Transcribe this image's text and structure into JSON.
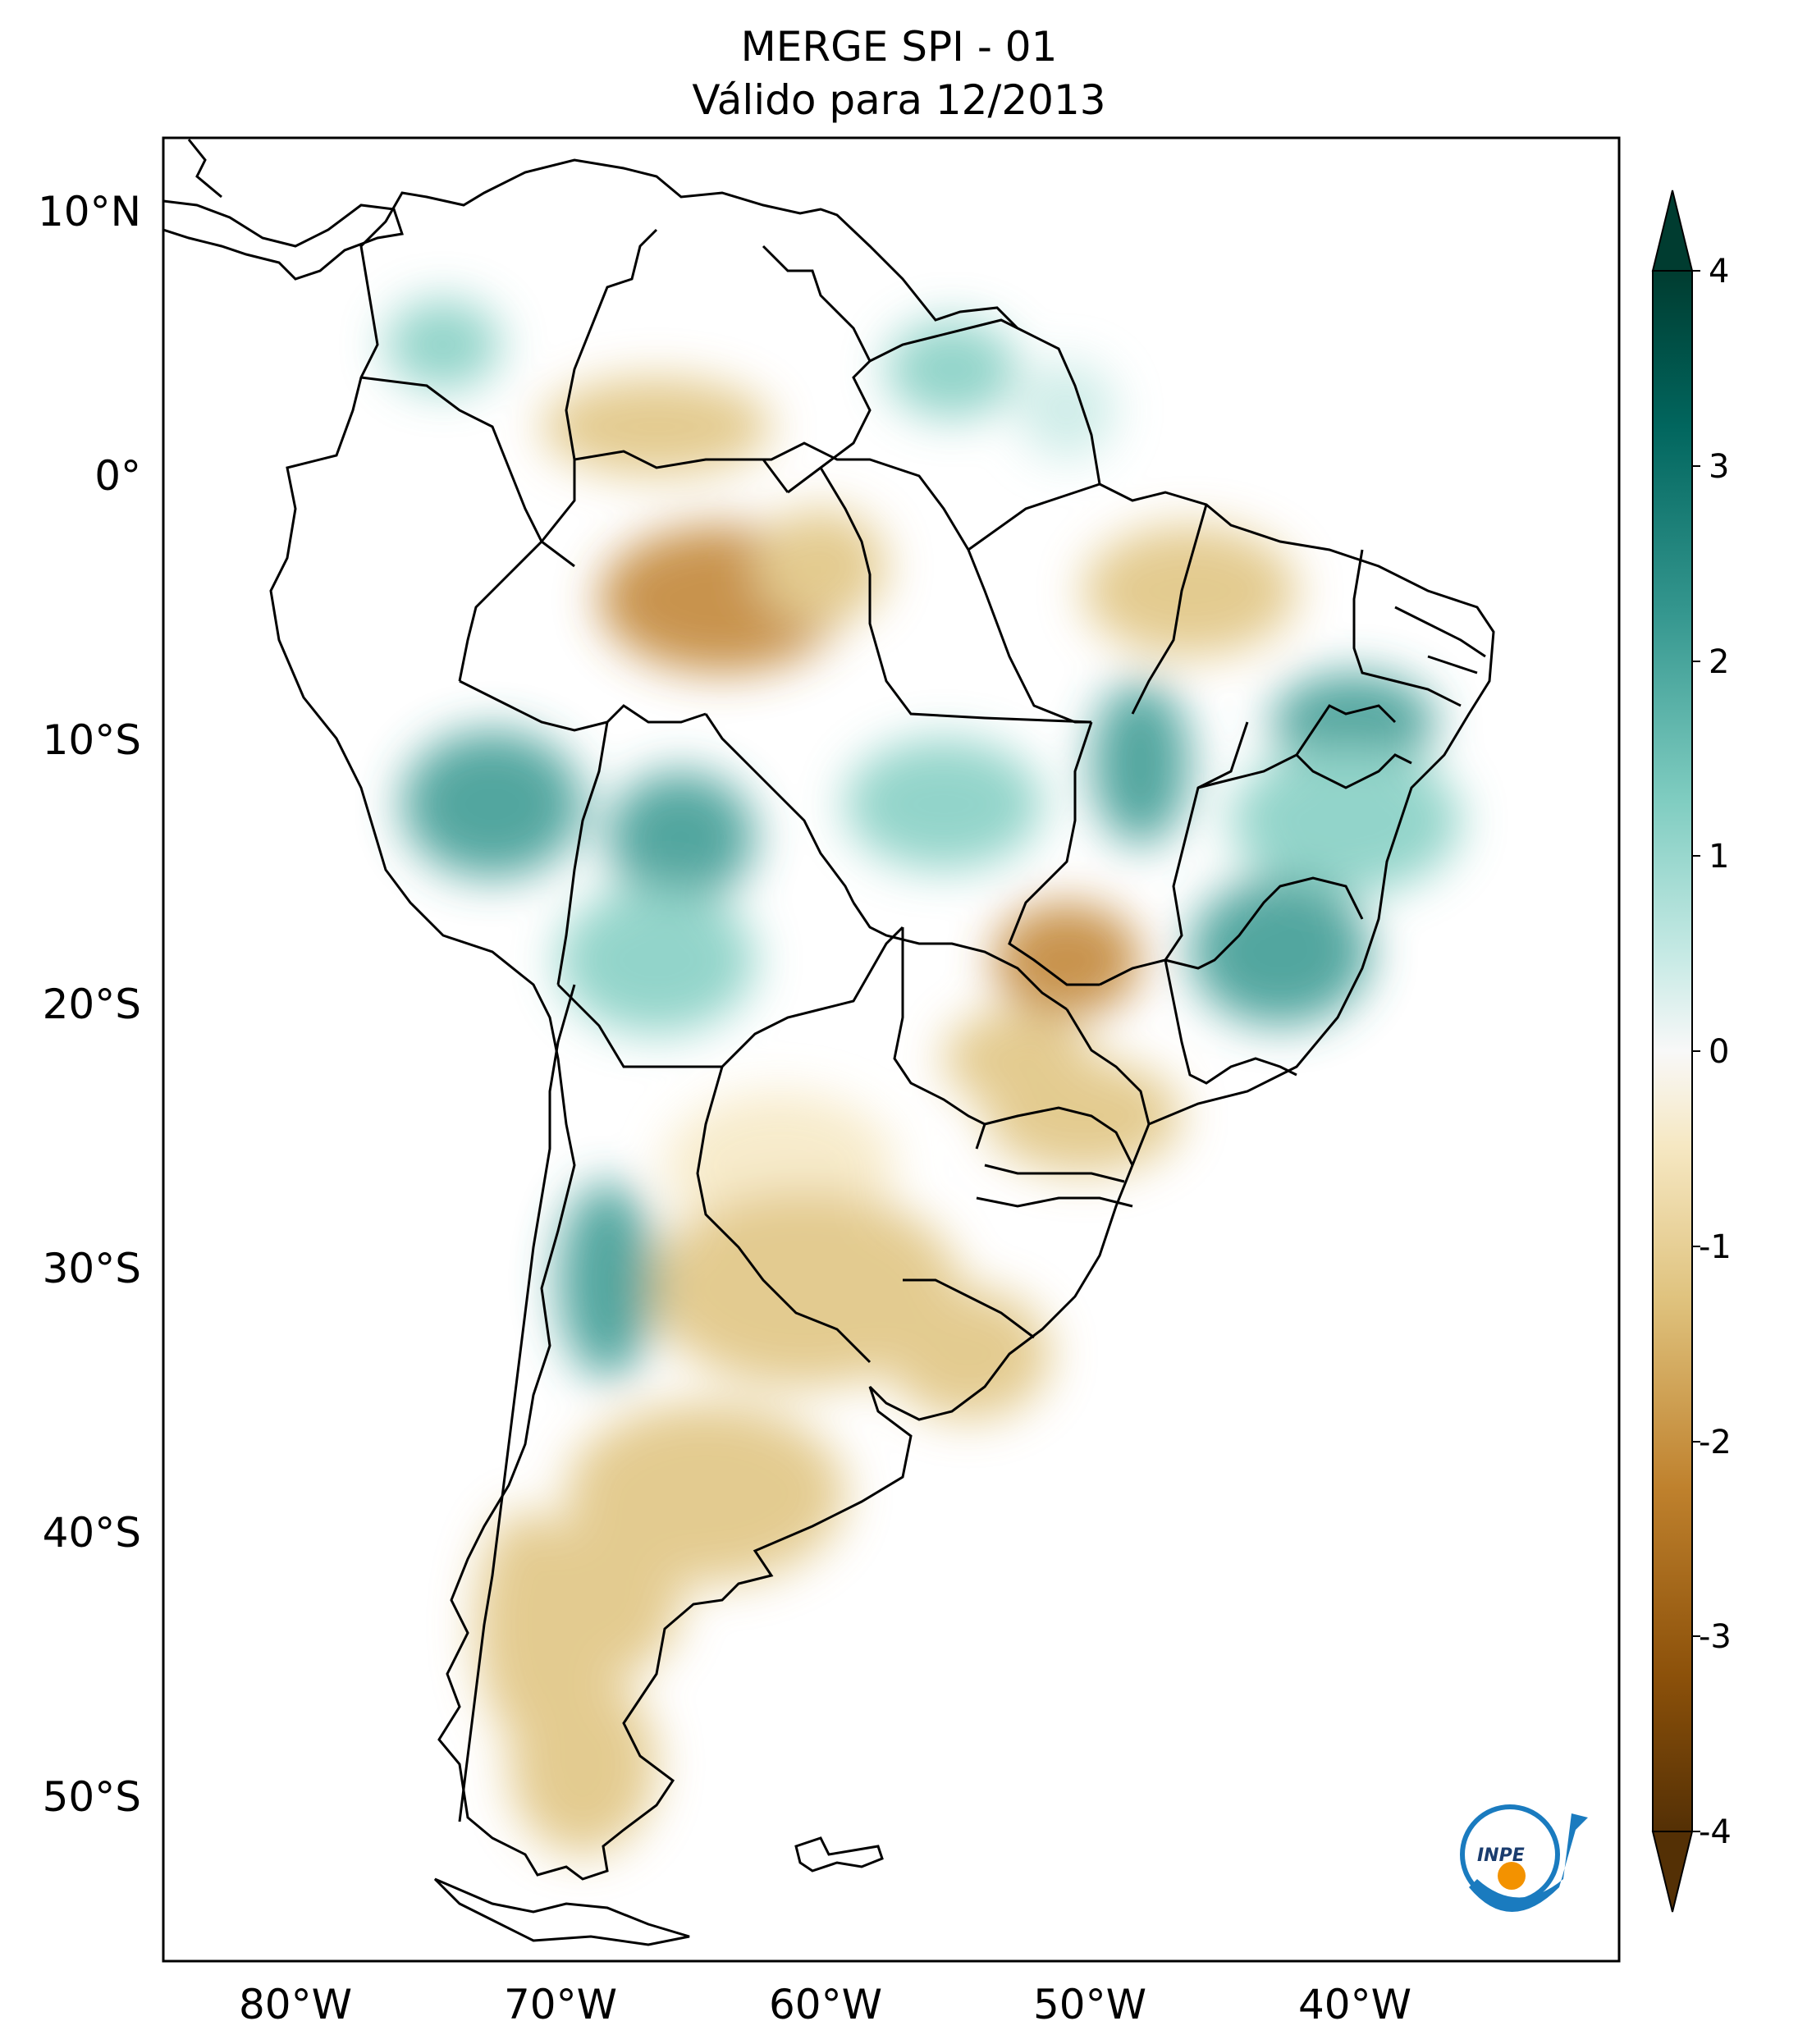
{
  "title": "MERGE   SPI - 01",
  "subtitle": "Válido para 12/2013",
  "axes": {
    "lon_ticks": [
      "80°W",
      "70°W",
      "60°W",
      "50°W",
      "40°W"
    ],
    "lat_ticks": [
      "10°N",
      "0°",
      "10°S",
      "20°S",
      "30°S",
      "40°S",
      "50°S"
    ],
    "lon_range": [
      -85,
      -30
    ],
    "lat_range": [
      -56,
      13
    ]
  },
  "colorbar": {
    "ticks": [
      "4",
      "3",
      "2",
      "1",
      "0",
      "-1",
      "-2",
      "-3",
      "-4"
    ],
    "range": [
      -4,
      4
    ],
    "extend": "both",
    "colors": {
      "dry_extreme": "#543005",
      "dry_strong": "#8c510a",
      "dry_moderate": "#bf812d",
      "dry_mild": "#dfc27d",
      "dry_light": "#f6e8c3",
      "neutral": "#f5f5f5",
      "wet_light": "#c7eae5",
      "wet_mild": "#80cdc1",
      "wet_moderate": "#35978f",
      "wet_strong": "#01665e",
      "wet_extreme": "#003c30"
    }
  },
  "logo": {
    "text": "INPE",
    "colors": {
      "arc": "#1a7bbf",
      "dot": "#f39200"
    }
  }
}
